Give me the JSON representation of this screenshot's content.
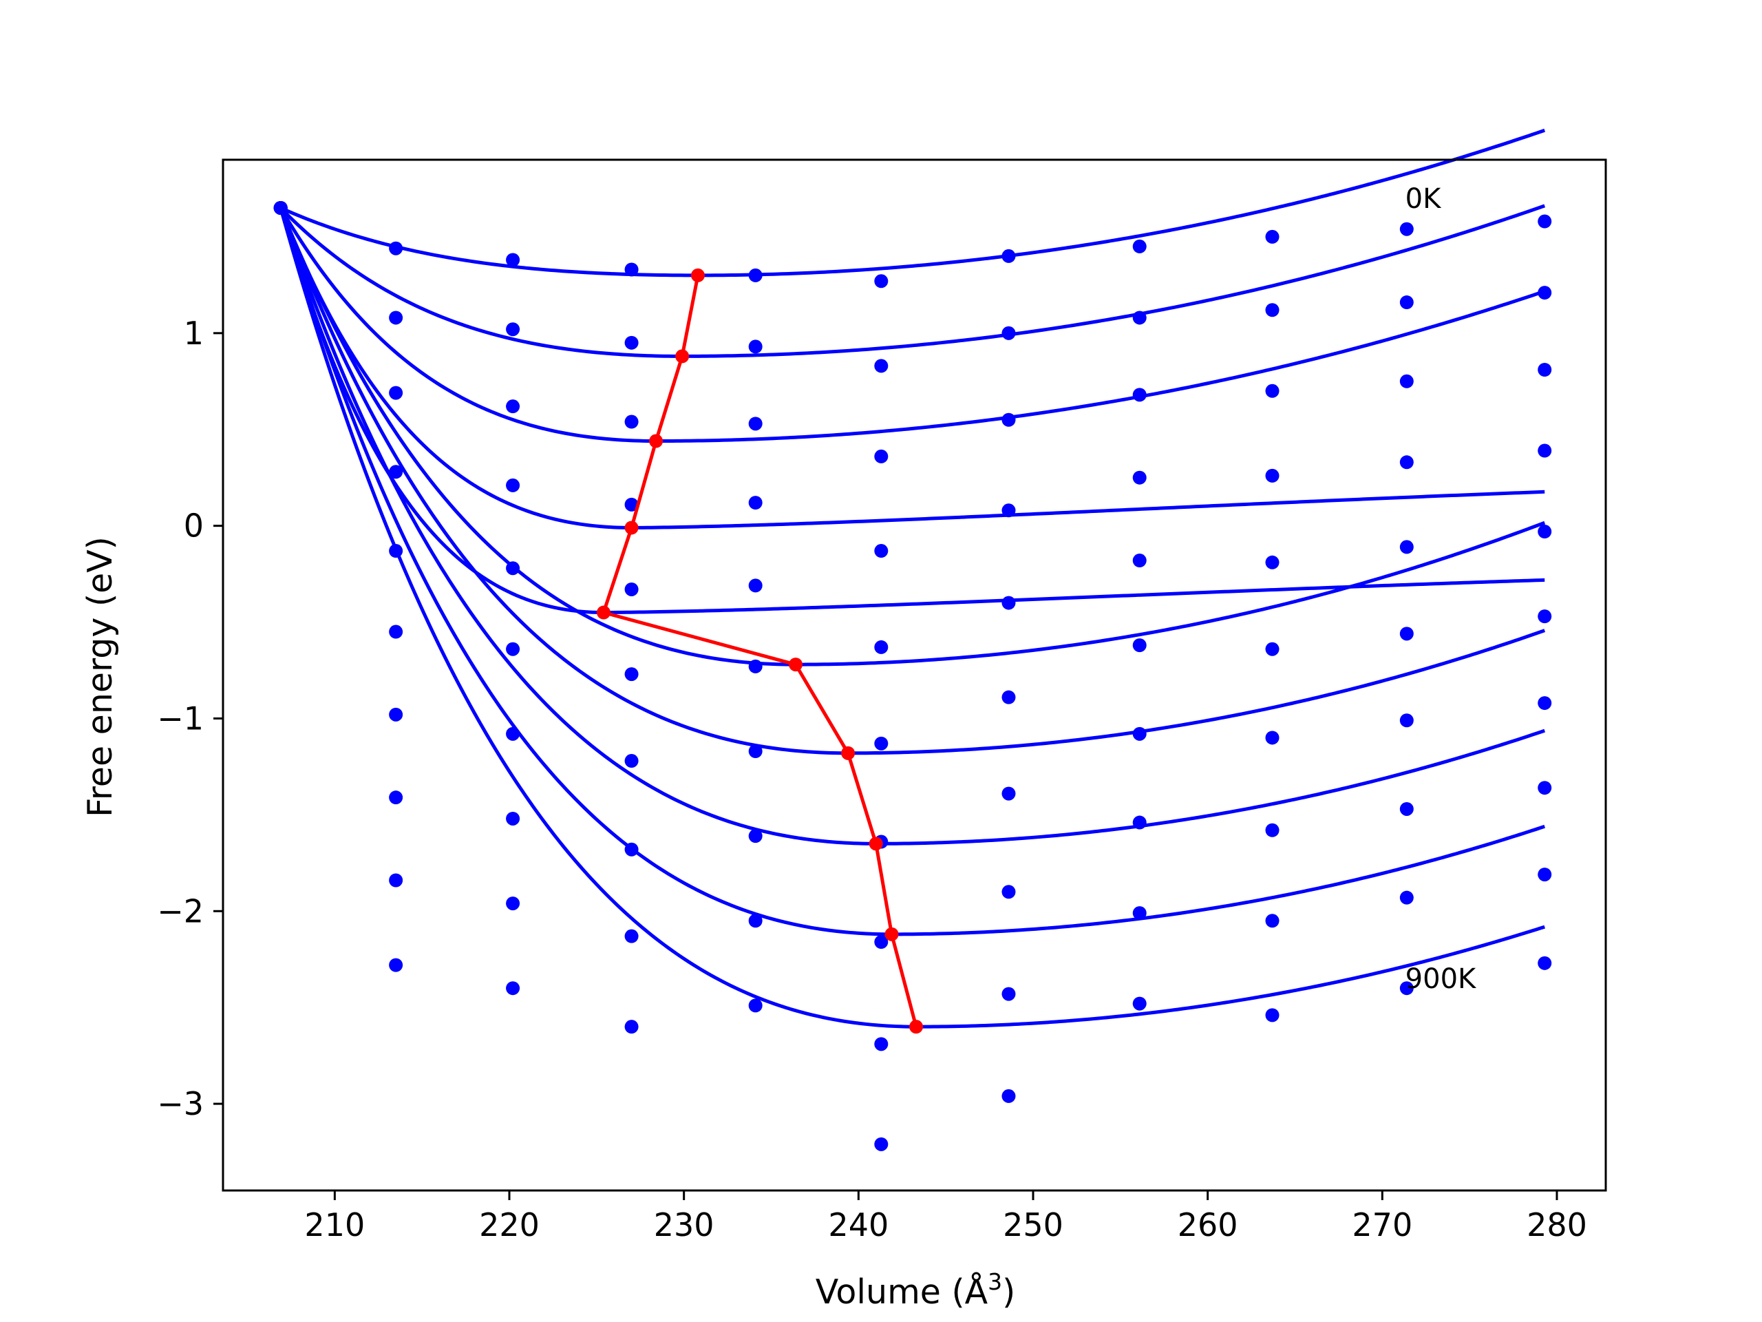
{
  "chart_data": {
    "type": "line",
    "xlabel": "Volume (Å",
    "xlabel_sup": "3",
    "xlabel_end": ")",
    "ylabel": "Free energy (eV)",
    "xlim": [
      203.6,
      282.8
    ],
    "ylim": [
      -3.45,
      1.9
    ],
    "xticks": [
      210,
      220,
      230,
      240,
      250,
      260,
      270,
      280
    ],
    "yticks": [
      1,
      0,
      -1,
      -2,
      -3
    ],
    "ytick_labels": [
      "1",
      "0",
      "−1",
      "−2",
      "−3"
    ],
    "grid": false,
    "annotations": [
      {
        "text": "0K",
        "x": 271.0,
        "y": 1.65
      },
      {
        "text": "900K",
        "x": 271.0,
        "y": -2.4
      }
    ],
    "colors": {
      "fit": "#0000ff",
      "points": "#0000ff",
      "minima": "#ff0000"
    },
    "volumes": [
      206.9,
      213.5,
      220.2,
      227.0,
      234.1,
      241.3,
      248.6,
      256.1,
      263.7,
      271.4,
      279.3
    ],
    "series": [
      {
        "E0": 1.3,
        "V0": 230.8,
        "B": 0.00032,
        "Vinf": 0,
        "points": [
          1.65,
          1.44,
          1.38,
          1.33,
          1.3,
          1.27,
          1.4,
          1.45,
          1.5,
          1.54,
          1.58
        ]
      },
      {
        "E0": 0.88,
        "V0": 229.9,
        "B": 0.00032,
        "Vinf": 0,
        "points": [
          1.65,
          1.08,
          1.02,
          0.95,
          0.93,
          0.83,
          1.0,
          1.08,
          1.12,
          1.16,
          1.21
        ]
      },
      {
        "E0": 0.44,
        "V0": 228.4,
        "B": 0.0003,
        "Vinf": 0,
        "points": [
          1.65,
          0.69,
          0.62,
          0.54,
          0.53,
          0.36,
          0.55,
          0.68,
          0.7,
          0.75,
          0.81
        ]
      },
      {
        "E0": -0.01,
        "V0": 227.0,
        "B": 0.0002,
        "Vinf": 0.32,
        "points": [
          1.65,
          0.28,
          0.21,
          0.11,
          0.12,
          -0.13,
          0.08,
          0.25,
          0.26,
          0.33,
          0.39
        ]
      },
      {
        "E0": -0.45,
        "V0": 225.4,
        "B": 0.0006,
        "Vinf": -0.16,
        "points": [
          1.65,
          -0.13,
          -0.22,
          -0.33,
          -0.31,
          -0.63,
          -0.4,
          -0.18,
          -0.19,
          -0.11,
          -0.03
        ]
      },
      {
        "E0": -0.72,
        "V0": 236.4,
        "B": 0.0004,
        "Vinf": 0,
        "points": [
          1.65,
          -0.55,
          -0.64,
          -0.77,
          -0.73,
          -1.13,
          -0.89,
          -0.62,
          -0.64,
          -0.56,
          -0.47
        ]
      },
      {
        "E0": -1.18,
        "V0": 239.4,
        "B": 0.0004,
        "Vinf": 0,
        "points": [
          1.65,
          -0.98,
          -1.08,
          -1.22,
          -1.17,
          -1.64,
          -1.39,
          -1.08,
          -1.1,
          -1.01,
          -0.92
        ]
      },
      {
        "E0": -1.65,
        "V0": 241.0,
        "B": 0.0004,
        "Vinf": 0,
        "points": [
          1.65,
          -1.41,
          -1.52,
          -1.68,
          -1.61,
          -2.16,
          -1.9,
          -1.54,
          -1.58,
          -1.47,
          -1.36
        ]
      },
      {
        "E0": -2.12,
        "V0": 241.9,
        "B": 0.0004,
        "Vinf": 0,
        "points": [
          1.65,
          -1.84,
          -1.96,
          -2.13,
          -2.05,
          -2.69,
          -2.43,
          -2.01,
          -2.05,
          -1.93,
          -1.81
        ]
      },
      {
        "E0": -2.6,
        "V0": 243.3,
        "B": 0.0004,
        "Vinf": 0,
        "points": [
          1.65,
          -2.28,
          -2.4,
          -2.6,
          -2.49,
          -3.21,
          -2.96,
          -2.48,
          -2.54,
          -2.4,
          -2.27
        ]
      }
    ],
    "minima": {
      "x": [
        230.8,
        229.9,
        228.4,
        227.0,
        225.4,
        236.4,
        239.4,
        241.0,
        241.9,
        243.3
      ],
      "y": [
        1.3,
        0.88,
        0.44,
        -0.01,
        -0.45,
        -0.72,
        -1.18,
        -1.65,
        -2.12,
        -2.6
      ]
    }
  }
}
